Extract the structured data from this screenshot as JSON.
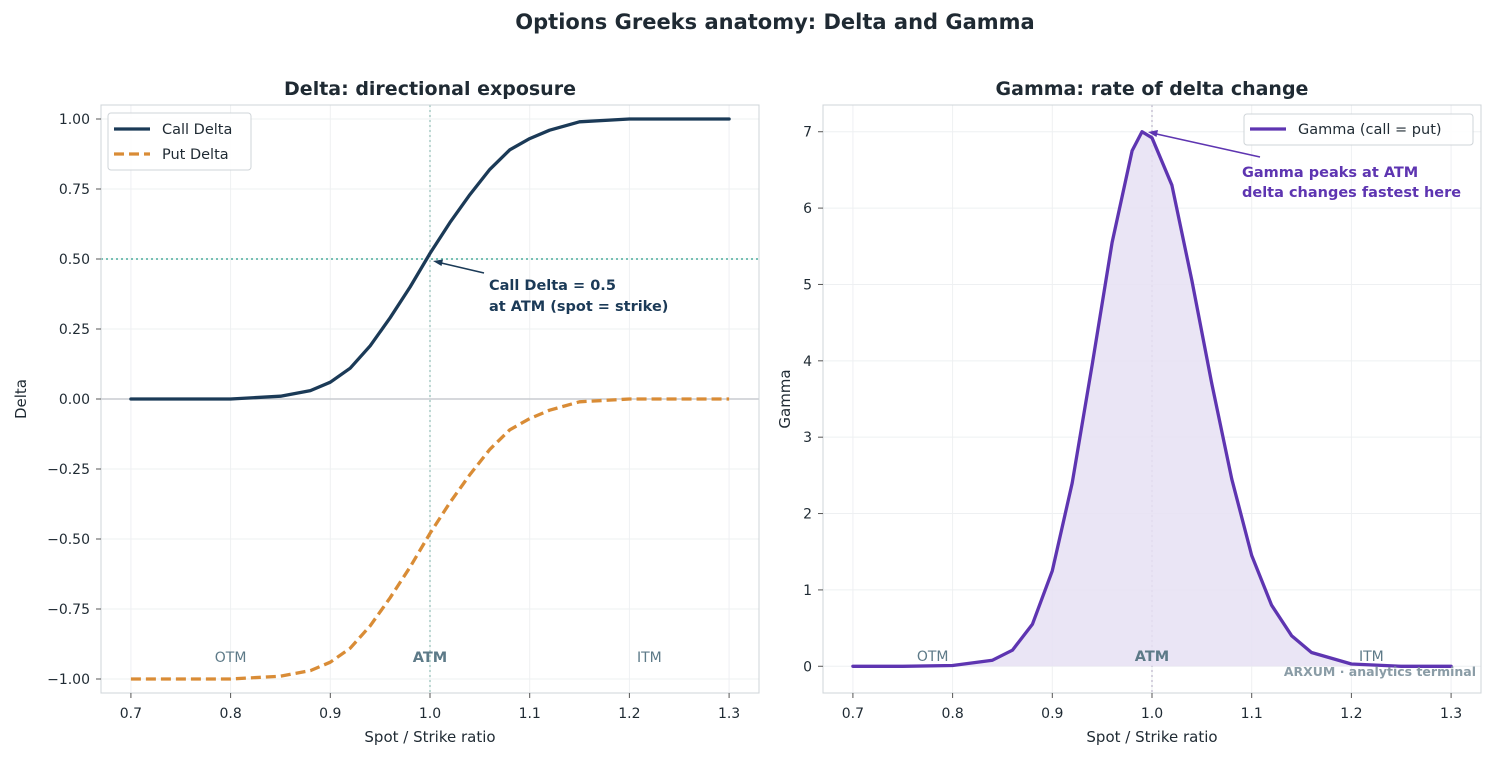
{
  "figure": {
    "title": "Options Greeks anatomy: Delta and Gamma",
    "watermark": "ARXUM · analytics terminal"
  },
  "chart_data": [
    {
      "type": "line",
      "title": "Delta: directional exposure",
      "xlabel": "Spot / Strike ratio",
      "ylabel": "Delta",
      "xlim": [
        0.67,
        1.33
      ],
      "ylim": [
        -1.05,
        1.05
      ],
      "x_ticks": [
        "0.7",
        "0.8",
        "0.9",
        "1.0",
        "1.1",
        "1.2",
        "1.3"
      ],
      "y_ticks": [
        "1.00",
        "0.75",
        "0.50",
        "0.25",
        "0.00",
        "−0.25",
        "−0.50",
        "−0.75",
        "−1.00"
      ],
      "grid": true,
      "legend_position": "top-left",
      "x": [
        0.7,
        0.75,
        0.8,
        0.85,
        0.88,
        0.9,
        0.92,
        0.94,
        0.96,
        0.98,
        1.0,
        1.02,
        1.04,
        1.06,
        1.08,
        1.1,
        1.12,
        1.15,
        1.2,
        1.25,
        1.3
      ],
      "series": [
        {
          "name": "Call Delta",
          "color": "#1b3a57",
          "style": "solid",
          "values": [
            0.0,
            0.0,
            0.0,
            0.01,
            0.03,
            0.06,
            0.11,
            0.19,
            0.29,
            0.4,
            0.52,
            0.63,
            0.73,
            0.82,
            0.89,
            0.93,
            0.96,
            0.99,
            1.0,
            1.0,
            1.0
          ]
        },
        {
          "name": "Put Delta",
          "color": "#d98c36",
          "style": "dashed",
          "values": [
            -1.0,
            -1.0,
            -1.0,
            -0.99,
            -0.97,
            -0.94,
            -0.89,
            -0.81,
            -0.71,
            -0.6,
            -0.48,
            -0.37,
            -0.27,
            -0.18,
            -0.11,
            -0.07,
            -0.04,
            -0.01,
            0.0,
            0.0,
            0.0
          ]
        }
      ],
      "reference_lines": {
        "vertical_x": 1.0,
        "horizontal_y": 0.5,
        "zero_y": 0.0
      },
      "annotation": {
        "lines": [
          "Call Delta = 0.5",
          "at ATM (spot = strike)"
        ],
        "points_to": [
          1.0,
          0.5
        ]
      },
      "zone_labels": [
        {
          "text": "OTM",
          "x": 0.8
        },
        {
          "text": "ATM",
          "x": 1.0
        },
        {
          "text": "ITM",
          "x": 1.22
        }
      ]
    },
    {
      "type": "area",
      "title": "Gamma: rate of delta change",
      "xlabel": "Spot / Strike ratio",
      "ylabel": "Gamma",
      "xlim": [
        0.67,
        1.33
      ],
      "ylim": [
        -0.35,
        7.35
      ],
      "x_ticks": [
        "0.7",
        "0.8",
        "0.9",
        "1.0",
        "1.1",
        "1.2",
        "1.3"
      ],
      "y_ticks": [
        "7",
        "6",
        "5",
        "4",
        "3",
        "2",
        "1",
        "0"
      ],
      "grid": true,
      "legend_position": "top-right",
      "x": [
        0.7,
        0.75,
        0.8,
        0.84,
        0.86,
        0.88,
        0.9,
        0.92,
        0.94,
        0.96,
        0.98,
        0.99,
        1.0,
        1.02,
        1.04,
        1.06,
        1.08,
        1.1,
        1.12,
        1.14,
        1.16,
        1.2,
        1.25,
        1.3
      ],
      "series": [
        {
          "name": "Gamma (call = put)",
          "color": "#5e35b1",
          "fill": "#e6e1f3",
          "values": [
            0.0,
            0.0,
            0.01,
            0.08,
            0.21,
            0.55,
            1.25,
            2.4,
            3.95,
            5.55,
            6.75,
            7.0,
            6.92,
            6.3,
            5.05,
            3.7,
            2.45,
            1.45,
            0.8,
            0.4,
            0.18,
            0.03,
            0.0,
            0.0
          ]
        }
      ],
      "reference_lines": {
        "vertical_x": 1.0
      },
      "annotation": {
        "lines": [
          "Gamma peaks at ATM",
          "delta changes fastest here"
        ],
        "points_to": [
          0.99,
          7.0
        ]
      },
      "zone_labels": [
        {
          "text": "OTM",
          "x": 0.78
        },
        {
          "text": "ATM",
          "x": 1.0
        },
        {
          "text": "ITM",
          "x": 1.22
        }
      ]
    }
  ]
}
